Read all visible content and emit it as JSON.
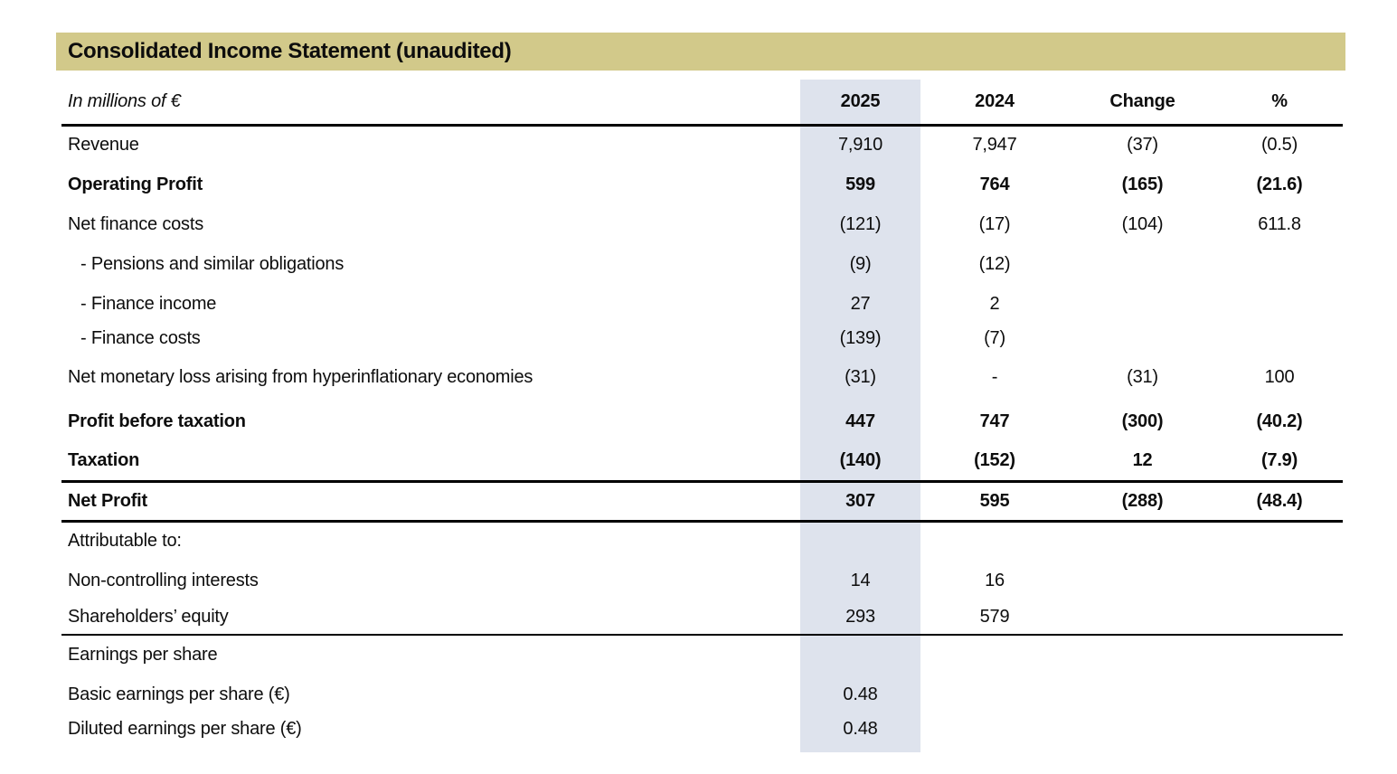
{
  "title": "Consolidated Income Statement (unaudited)",
  "colors": {
    "title_bar": "#d2c98a",
    "highlight_column": "#dee3ed",
    "text": "#0d0d0d",
    "rule": "#000000"
  },
  "table": {
    "unit_label": "In millions of €",
    "columns": [
      "2025",
      "2024",
      "Change",
      "%"
    ],
    "highlighted_column": "2025",
    "rows": [
      {
        "label": "Revenue",
        "values": [
          "7,910",
          "7,947",
          "(37)",
          "(0.5)"
        ],
        "bold": false,
        "indent": false,
        "spacing": "normal",
        "rule_after": 0
      },
      {
        "label": "Operating Profit",
        "values": [
          "599",
          "764",
          "(165)",
          "(21.6)"
        ],
        "bold": true,
        "indent": false,
        "spacing": "normal",
        "rule_after": 0
      },
      {
        "label": "Net finance costs",
        "values": [
          "(121)",
          "(17)",
          "(104)",
          "611.8"
        ],
        "bold": false,
        "indent": false,
        "spacing": "normal",
        "rule_after": 0
      },
      {
        "label": "- Pensions and similar obligations",
        "values": [
          "(9)",
          "(12)",
          "",
          ""
        ],
        "bold": false,
        "indent": true,
        "spacing": "normal",
        "rule_after": 0
      },
      {
        "label": "- Finance income",
        "values": [
          "27",
          "2",
          "",
          ""
        ],
        "bold": false,
        "indent": true,
        "spacing": "normal",
        "rule_after": 0
      },
      {
        "label": "- Finance costs",
        "values": [
          "(139)",
          "(7)",
          "",
          ""
        ],
        "bold": false,
        "indent": true,
        "spacing": "tight",
        "rule_after": 0
      },
      {
        "label": "Net monetary loss arising from hyperinflationary economies",
        "values": [
          "(31)",
          "-",
          "(31)",
          "100"
        ],
        "bold": false,
        "indent": false,
        "spacing": "tall",
        "rule_after": 0
      },
      {
        "label": "Profit before taxation",
        "values": [
          "447",
          "747",
          "(300)",
          "(40.2)"
        ],
        "bold": true,
        "indent": false,
        "spacing": "normal",
        "rule_after": 0
      },
      {
        "label": "Taxation",
        "values": [
          "(140)",
          "(152)",
          "12",
          "(7.9)"
        ],
        "bold": true,
        "indent": false,
        "spacing": "normal",
        "rule_after": 3
      },
      {
        "label": "Net Profit",
        "values": [
          "307",
          "595",
          "(288)",
          "(48.4)"
        ],
        "bold": true,
        "indent": false,
        "spacing": "normal",
        "rule_after": 3
      },
      {
        "label": "Attributable to:",
        "values": [
          "",
          "",
          "",
          ""
        ],
        "bold": false,
        "indent": false,
        "spacing": "normal",
        "rule_after": 0
      },
      {
        "label": "Non-controlling interests",
        "values": [
          "14",
          "16",
          "",
          ""
        ],
        "bold": false,
        "indent": false,
        "spacing": "normal",
        "rule_after": 0
      },
      {
        "label": "Shareholders’ equity",
        "values": [
          "293",
          "579",
          "",
          ""
        ],
        "bold": false,
        "indent": false,
        "spacing": "short",
        "rule_after": 2
      },
      {
        "label": "Earnings per share",
        "values": [
          "",
          "",
          "",
          ""
        ],
        "bold": false,
        "indent": false,
        "spacing": "normal",
        "rule_after": 0
      },
      {
        "label": "Basic earnings per share (€)",
        "values": [
          "0.48",
          "",
          "",
          ""
        ],
        "bold": false,
        "indent": false,
        "spacing": "normal",
        "rule_after": 0
      },
      {
        "label": "Diluted earnings per share (€)",
        "values": [
          "0.48",
          "",
          "",
          ""
        ],
        "bold": false,
        "indent": false,
        "spacing": "tight",
        "rule_after": 0
      }
    ]
  }
}
